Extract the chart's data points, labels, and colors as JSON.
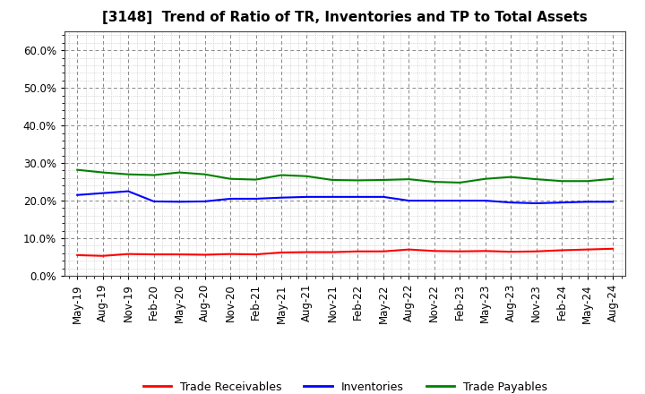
{
  "title": "[3148]  Trend of Ratio of TR, Inventories and TP to Total Assets",
  "ylim": [
    0.0,
    0.65
  ],
  "yticks": [
    0.0,
    0.1,
    0.2,
    0.3,
    0.4,
    0.5,
    0.6
  ],
  "x_labels": [
    "May-19",
    "Aug-19",
    "Nov-19",
    "Feb-20",
    "May-20",
    "Aug-20",
    "Nov-20",
    "Feb-21",
    "May-21",
    "Aug-21",
    "Nov-21",
    "Feb-22",
    "May-22",
    "Aug-22",
    "Nov-22",
    "Feb-23",
    "May-23",
    "Aug-23",
    "Nov-23",
    "Feb-24",
    "May-24",
    "Aug-24"
  ],
  "trade_receivables": [
    0.055,
    0.053,
    0.058,
    0.057,
    0.057,
    0.056,
    0.058,
    0.057,
    0.062,
    0.063,
    0.063,
    0.065,
    0.065,
    0.07,
    0.066,
    0.065,
    0.066,
    0.064,
    0.065,
    0.068,
    0.07,
    0.072
  ],
  "inventories": [
    0.215,
    0.22,
    0.225,
    0.198,
    0.197,
    0.198,
    0.205,
    0.205,
    0.208,
    0.21,
    0.21,
    0.21,
    0.21,
    0.2,
    0.2,
    0.2,
    0.2,
    0.195,
    0.193,
    0.195,
    0.197,
    0.197
  ],
  "trade_payables": [
    0.282,
    0.275,
    0.27,
    0.268,
    0.275,
    0.27,
    0.258,
    0.256,
    0.268,
    0.265,
    0.255,
    0.254,
    0.255,
    0.257,
    0.25,
    0.248,
    0.258,
    0.263,
    0.257,
    0.252,
    0.252,
    0.258
  ],
  "tr_color": "#ff0000",
  "inv_color": "#0000ff",
  "tp_color": "#008000",
  "line_width": 1.5,
  "legend_labels": [
    "Trade Receivables",
    "Inventories",
    "Trade Payables"
  ],
  "background_color": "#ffffff",
  "major_grid_color": "#888888",
  "minor_grid_color": "#bbbbbb",
  "title_fontsize": 11,
  "tick_fontsize": 8.5
}
